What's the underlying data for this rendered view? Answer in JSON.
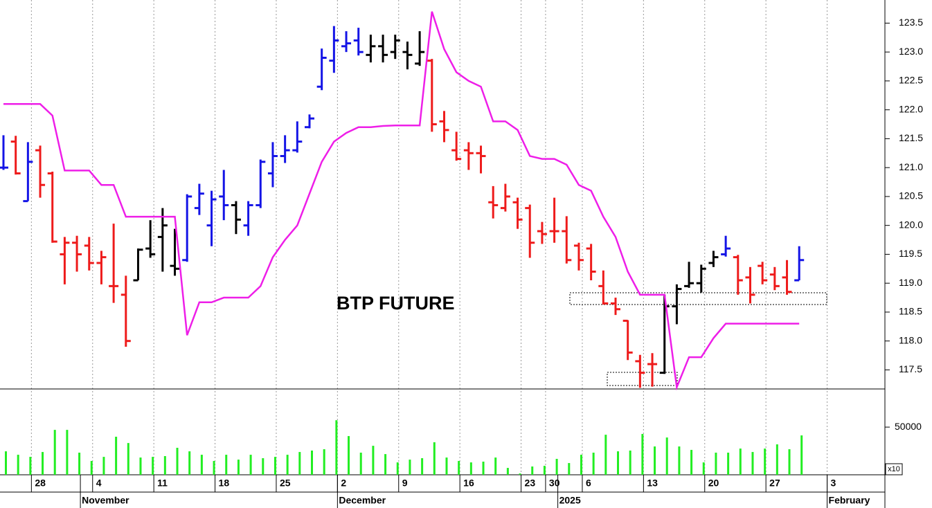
{
  "chart_data": [
    {
      "type": "ohlc",
      "title": "BTP FUTURE",
      "open": [
        121.0,
        121.45,
        120.42,
        121.3,
        120.9,
        119.5,
        119.7,
        119.65,
        119.35,
        118.95,
        118.8,
        119.05,
        119.6,
        119.8,
        119.3,
        119.4,
        120.3,
        120.0,
        120.5,
        120.35,
        120.0,
        120.35,
        120.9,
        121.2,
        121.3,
        121.7,
        122.4,
        122.85,
        123.1,
        123.2,
        122.95,
        123.1,
        123.0,
        123.0,
        122.8,
        122.85,
        121.8,
        121.3,
        121.3,
        121.25,
        120.4,
        120.3,
        120.4,
        120.3,
        119.9,
        119.9,
        119.9,
        119.65,
        119.6,
        118.95,
        118.65,
        118.35,
        117.65,
        117.6,
        117.45,
        118.6,
        118.95,
        119.0,
        119.35,
        119.5,
        119.45,
        119.1,
        119.3,
        119.15,
        119.1,
        119.05,
        null,
        null
      ],
      "high": [
        121.56,
        121.55,
        121.44,
        121.38,
        120.93,
        119.8,
        119.82,
        119.8,
        119.56,
        120.03,
        119.13,
        119.6,
        120.09,
        120.3,
        119.94,
        120.54,
        120.72,
        120.6,
        120.96,
        120.42,
        120.42,
        121.14,
        121.44,
        121.56,
        121.8,
        121.92,
        123.06,
        123.45,
        123.36,
        123.42,
        123.3,
        123.3,
        123.3,
        123.18,
        123.36,
        122.88,
        121.98,
        121.62,
        121.44,
        121.38,
        120.68,
        120.72,
        120.48,
        120.36,
        120.06,
        120.48,
        120.16,
        119.7,
        119.68,
        119.22,
        118.75,
        118.36,
        117.76,
        117.79,
        118.8,
        118.98,
        119.37,
        119.32,
        119.56,
        119.82,
        119.49,
        119.28,
        119.37,
        119.28,
        119.4,
        119.64,
        null,
        null
      ],
      "low": [
        120.96,
        120.88,
        120.42,
        120.48,
        119.7,
        118.98,
        119.2,
        119.22,
        118.98,
        118.66,
        117.9,
        119.05,
        119.44,
        119.2,
        119.13,
        119.37,
        120.18,
        119.64,
        120.09,
        119.85,
        119.82,
        120.3,
        120.66,
        121.08,
        121.26,
        121.68,
        122.34,
        122.64,
        123.0,
        122.94,
        122.82,
        122.82,
        122.88,
        122.7,
        122.76,
        121.62,
        121.44,
        121.12,
        120.96,
        120.9,
        120.12,
        120.24,
        119.94,
        119.44,
        119.68,
        119.7,
        119.34,
        119.22,
        119.05,
        118.63,
        118.45,
        117.67,
        117.19,
        117.21,
        117.43,
        118.29,
        118.92,
        118.84,
        119.28,
        119.46,
        118.8,
        118.65,
        118.98,
        118.88,
        118.8,
        119.05,
        null,
        null
      ],
      "close": [
        121.0,
        120.9,
        121.1,
        120.7,
        119.72,
        119.7,
        119.5,
        119.35,
        119.45,
        118.95,
        118.0,
        119.58,
        119.5,
        120.0,
        119.25,
        120.5,
        120.55,
        120.45,
        120.35,
        120.1,
        120.35,
        121.1,
        121.2,
        121.3,
        121.45,
        121.85,
        122.9,
        123.2,
        123.15,
        123.0,
        123.1,
        122.95,
        123.2,
        122.95,
        123.0,
        121.75,
        121.65,
        121.15,
        121.25,
        121.2,
        120.35,
        120.5,
        120.1,
        119.7,
        119.85,
        119.9,
        119.4,
        119.4,
        119.2,
        118.65,
        118.55,
        117.8,
        117.45,
        117.6,
        118.6,
        118.9,
        119.0,
        119.25,
        119.45,
        119.6,
        119.05,
        118.8,
        119.05,
        118.95,
        118.85,
        119.4,
        null,
        null
      ],
      "bar_colors": [
        "#1414e6",
        "#ee1b1b",
        "#1414e6",
        "#ee1b1b",
        "#ee1b1b",
        "#ee1b1b",
        "#ee1b1b",
        "#ee1b1b",
        "#ee1b1b",
        "#ee1b1b",
        "#ee1b1b",
        "#000000",
        "#000000",
        "#000000",
        "#000000",
        "#1414e6",
        "#1414e6",
        "#1414e6",
        "#1414e6",
        "#000000",
        "#1414e6",
        "#1414e6",
        "#1414e6",
        "#1414e6",
        "#1414e6",
        "#1414e6",
        "#1414e6",
        "#1414e6",
        "#1414e6",
        "#1414e6",
        "#000000",
        "#000000",
        "#000000",
        "#000000",
        "#000000",
        "#ee1b1b",
        "#ee1b1b",
        "#ee1b1b",
        "#ee1b1b",
        "#ee1b1b",
        "#ee1b1b",
        "#ee1b1b",
        "#ee1b1b",
        "#ee1b1b",
        "#ee1b1b",
        "#ee1b1b",
        "#ee1b1b",
        "#ee1b1b",
        "#ee1b1b",
        "#ee1b1b",
        "#ee1b1b",
        "#ee1b1b",
        "#ee1b1b",
        "#ee1b1b",
        "#000000",
        "#000000",
        "#000000",
        "#000000",
        "#000000",
        "#1414e6",
        "#ee1b1b",
        "#ee1b1b",
        "#ee1b1b",
        "#ee1b1b",
        "#ee1b1b",
        "#1414e6",
        null,
        null
      ],
      "overlay": {
        "type": "line",
        "color": "#ee1ee8",
        "values": [
          122.1,
          122.1,
          122.1,
          122.1,
          121.9,
          120.95,
          120.95,
          120.95,
          120.7,
          120.7,
          120.15,
          120.15,
          120.15,
          120.15,
          120.15,
          118.1,
          118.67,
          118.67,
          118.75,
          118.75,
          118.75,
          118.95,
          119.45,
          119.75,
          120.0,
          120.55,
          121.1,
          121.45,
          121.6,
          121.7,
          121.7,
          121.72,
          121.73,
          121.73,
          121.73,
          123.7,
          123.05,
          122.65,
          122.5,
          122.4,
          121.8,
          121.8,
          121.65,
          121.2,
          121.15,
          121.15,
          121.05,
          120.7,
          120.6,
          120.15,
          119.8,
          119.2,
          118.8,
          118.8,
          118.8,
          117.2,
          117.72,
          117.72,
          118.05,
          118.3,
          118.3,
          118.3,
          118.3,
          118.3,
          118.3,
          118.3,
          null,
          null
        ]
      },
      "ylim": [
        117.17,
        123.9
      ],
      "yticks": [
        117.5,
        {
          "value": 118,
          "label": "118.0"
        },
        118.5,
        {
          "value": 119,
          "label": "119.0"
        },
        119.5,
        {
          "value": 120,
          "label": "120.0"
        },
        120.5,
        {
          "value": 121,
          "label": "121.0"
        },
        121.5,
        {
          "value": 122,
          "label": "122.0"
        },
        122.5,
        {
          "value": 123,
          "label": "123.0"
        },
        123.5
      ],
      "grid": true
    },
    {
      "type": "bar",
      "color": "#22ee22",
      "values": [
        24600,
        21000,
        18800,
        23900,
        47100,
        47100,
        23200,
        14500,
        18800,
        39900,
        33300,
        18100,
        18800,
        19600,
        28300,
        24600,
        21000,
        14500,
        21000,
        15900,
        21000,
        17400,
        18800,
        21000,
        23900,
        25400,
        26800,
        57200,
        40600,
        23200,
        30400,
        21700,
        13000,
        15900,
        17400,
        34100,
        18100,
        14500,
        13000,
        13800,
        18100,
        7200,
        1400,
        8700,
        9400,
        16700,
        12300,
        21000,
        23200,
        42000,
        24600,
        25400,
        42800,
        29700,
        39100,
        29700,
        26100,
        13000,
        23200,
        23200,
        27500,
        23900,
        27500,
        31900,
        26800,
        41300,
        null,
        null
      ],
      "categories": [
        null,
        null,
        "28",
        null,
        null,
        null,
        null,
        "4",
        null,
        null,
        null,
        null,
        "11",
        null,
        null,
        null,
        null,
        "18",
        null,
        null,
        null,
        null,
        "25",
        null,
        null,
        null,
        null,
        "2",
        null,
        null,
        null,
        null,
        "9",
        null,
        null,
        null,
        null,
        "16",
        null,
        null,
        null,
        null,
        "23",
        null,
        "30",
        null,
        null,
        "6",
        null,
        null,
        null,
        null,
        "13",
        null,
        null,
        null,
        null,
        "20",
        null,
        null,
        null,
        null,
        "27",
        null,
        null,
        null,
        null,
        "3"
      ],
      "month_categories": [
        null,
        null,
        null,
        null,
        null,
        null,
        "November",
        null,
        null,
        null,
        null,
        null,
        null,
        null,
        null,
        null,
        null,
        null,
        null,
        null,
        null,
        null,
        null,
        null,
        null,
        null,
        null,
        "December",
        null,
        null,
        null,
        null,
        null,
        null,
        null,
        null,
        null,
        null,
        null,
        null,
        null,
        null,
        null,
        null,
        null,
        "2025",
        null,
        null,
        null,
        null,
        null,
        null,
        null,
        null,
        null,
        null,
        null,
        null,
        null,
        null,
        null,
        null,
        null,
        null,
        null,
        null,
        null,
        "February"
      ],
      "ylim": [
        0,
        90000
      ],
      "yticks": [
        50000
      ],
      "ytick_scale_label": "x10",
      "grid": true
    }
  ]
}
